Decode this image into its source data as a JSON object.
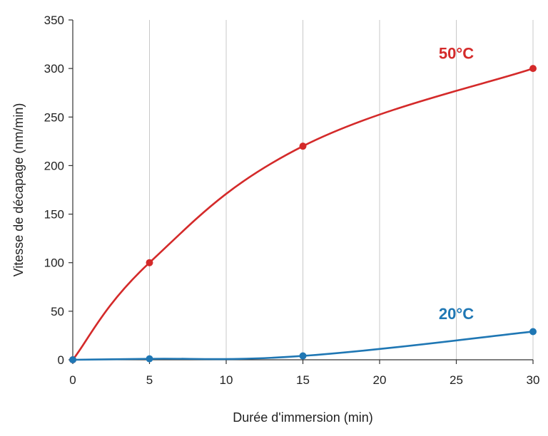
{
  "chart_data": {
    "type": "line",
    "title": "",
    "xlabel": "Durée d'immersion (min)",
    "ylabel": "Vitesse de décapage (nm/min)",
    "xlim": [
      0,
      30
    ],
    "ylim": [
      0,
      350
    ],
    "x_ticks": [
      0,
      5,
      10,
      15,
      20,
      25,
      30
    ],
    "y_ticks": [
      0,
      50,
      100,
      150,
      200,
      250,
      300,
      350
    ],
    "grid": "vertical",
    "series": [
      {
        "name": "50°C",
        "color": "#d42a2a",
        "x": [
          0,
          5,
          15,
          30
        ],
        "values": [
          0,
          100,
          220,
          300
        ],
        "label_anchor": [
          25,
          310
        ]
      },
      {
        "name": "20°C",
        "color": "#1f77b4",
        "x": [
          0,
          5,
          15,
          30
        ],
        "values": [
          0,
          1,
          4,
          29
        ],
        "label_anchor": [
          25,
          42
        ]
      }
    ]
  }
}
